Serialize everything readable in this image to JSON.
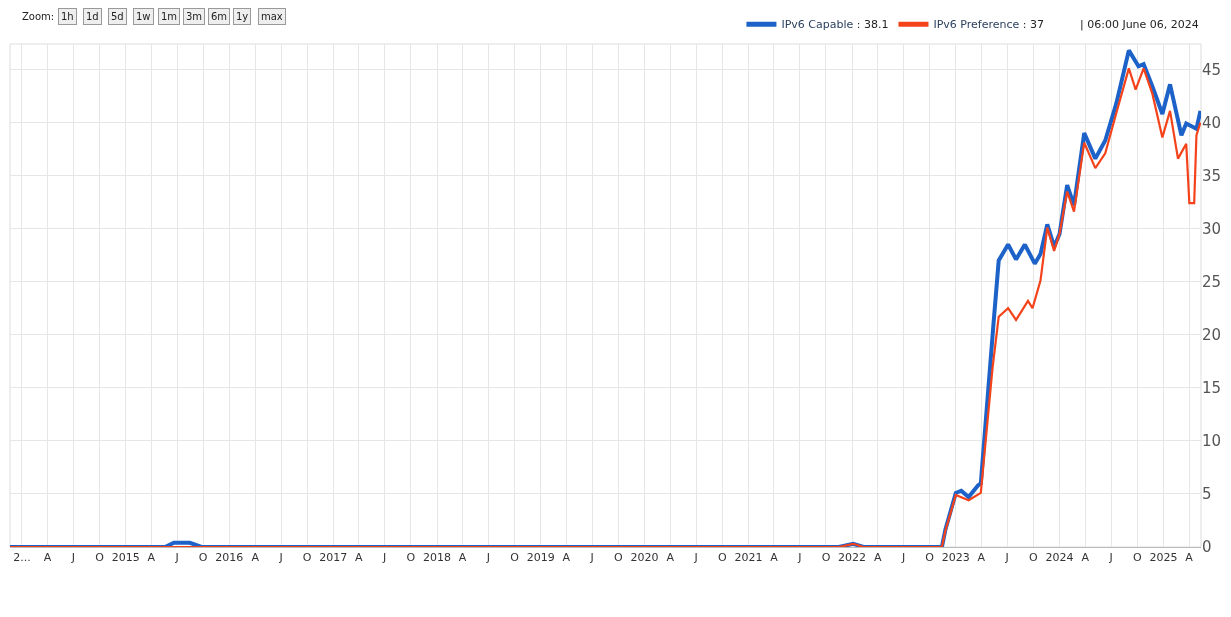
{
  "chart_data": {
    "type": "line",
    "annotations": [
      "Zoom:",
      "1h",
      "1d",
      "5d",
      "1w",
      "1m",
      "3m",
      "6m",
      "1y",
      "max",
      ": 38.1",
      ": 37",
      "| 06:00 June 06, 2024"
    ],
    "xlim": [
      "2013-11-20",
      "2025-05-13"
    ],
    "xticks": [
      {
        "value": "2014-01-01",
        "label": "2..."
      },
      {
        "value": "2014-04-01",
        "label": "A"
      },
      {
        "value": "2014-07-01",
        "label": "J"
      },
      {
        "value": "2014-10-01",
        "label": "O"
      },
      {
        "value": "2015-01-01",
        "label": "2015"
      },
      {
        "value": "2015-04-01",
        "label": "A"
      },
      {
        "value": "2015-07-01",
        "label": "J"
      },
      {
        "value": "2015-10-01",
        "label": "O"
      },
      {
        "value": "2016-01-01",
        "label": "2016"
      },
      {
        "value": "2016-04-01",
        "label": "A"
      },
      {
        "value": "2016-07-01",
        "label": "J"
      },
      {
        "value": "2016-10-01",
        "label": "O"
      },
      {
        "value": "2017-01-01",
        "label": "2017"
      },
      {
        "value": "2017-04-01",
        "label": "A"
      },
      {
        "value": "2017-07-01",
        "label": "J"
      },
      {
        "value": "2017-10-01",
        "label": "O"
      },
      {
        "value": "2018-01-01",
        "label": "2018"
      },
      {
        "value": "2018-04-01",
        "label": "A"
      },
      {
        "value": "2018-07-01",
        "label": "J"
      },
      {
        "value": "2018-10-01",
        "label": "O"
      },
      {
        "value": "2019-01-01",
        "label": "2019"
      },
      {
        "value": "2019-04-01",
        "label": "A"
      },
      {
        "value": "2019-07-01",
        "label": "J"
      },
      {
        "value": "2019-10-01",
        "label": "O"
      },
      {
        "value": "2020-01-01",
        "label": "2020"
      },
      {
        "value": "2020-04-01",
        "label": "A"
      },
      {
        "value": "2020-07-01",
        "label": "J"
      },
      {
        "value": "2020-10-01",
        "label": "O"
      },
      {
        "value": "2021-01-01",
        "label": "2021"
      },
      {
        "value": "2021-04-01",
        "label": "A"
      },
      {
        "value": "2021-07-01",
        "label": "J"
      },
      {
        "value": "2021-10-01",
        "label": "O"
      },
      {
        "value": "2022-01-01",
        "label": "2022"
      },
      {
        "value": "2022-04-01",
        "label": "A"
      },
      {
        "value": "2022-07-01",
        "label": "J"
      },
      {
        "value": "2022-10-01",
        "label": "O"
      },
      {
        "value": "2023-01-01",
        "label": "2023"
      },
      {
        "value": "2023-04-01",
        "label": "A"
      },
      {
        "value": "2023-07-01",
        "label": "J"
      },
      {
        "value": "2023-10-01",
        "label": "O"
      },
      {
        "value": "2024-01-01",
        "label": "2024"
      },
      {
        "value": "2024-04-01",
        "label": "A"
      },
      {
        "value": "2024-07-01",
        "label": "J"
      },
      {
        "value": "2024-10-01",
        "label": "O"
      },
      {
        "value": "2025-01-01",
        "label": "2025"
      },
      {
        "value": "2025-04-01",
        "label": "A"
      }
    ],
    "ylim": [
      0,
      47.4
    ],
    "yticks": [
      0,
      5,
      10,
      15,
      20,
      25,
      30,
      35,
      40,
      45
    ],
    "grid": true,
    "legend": "top right",
    "marker": "none",
    "line_style": "solid",
    "series": [
      {
        "name": "IPv6 Capable",
        "color": "#1d62c8",
        "x": [
          "2013-11-20",
          "2015-05-20",
          "2015-06-20",
          "2015-08-15",
          "2015-09-25",
          "2015-10-10",
          "2021-11-15",
          "2022-01-05",
          "2022-02-10",
          "2022-11-13",
          "2022-11-25",
          "2023-01-01",
          "2023-01-20",
          "2023-02-15",
          "2023-03-20",
          "2023-03-30",
          "2023-05-13",
          "2023-06-01",
          "2023-07-04",
          "2023-08-01",
          "2023-09-01",
          "2023-10-06",
          "2023-10-26",
          "2023-11-19",
          "2023-12-13",
          "2024-01-01",
          "2024-01-28",
          "2024-02-21",
          "2024-03-28",
          "2024-05-06",
          "2024-06-10",
          "2024-07-19",
          "2024-09-01",
          "2024-10-05",
          "2024-10-23",
          "2024-11-23",
          "2024-12-28",
          "2025-01-24",
          "2025-03-05",
          "2025-03-22",
          "2025-04-27",
          "2025-05-11"
        ],
        "values": [
          0,
          0,
          0.4,
          0.4,
          0,
          0,
          0,
          0.3,
          0,
          0,
          1.6,
          5.1,
          5.3,
          4.7,
          5.8,
          6.0,
          20.8,
          27.0,
          28.5,
          27.1,
          28.5,
          26.7,
          27.6,
          30.4,
          28.3,
          29.5,
          34.1,
          32.2,
          39.0,
          36.6,
          38.3,
          41.8,
          46.8,
          45.3,
          45.5,
          43.4,
          40.8,
          43.6,
          38.8,
          39.9,
          39.4,
          41.1
        ]
      },
      {
        "name": "IPv6 Preference",
        "color": "#f4431b",
        "x": [
          "2013-11-20",
          "2021-11-15",
          "2022-01-05",
          "2022-02-10",
          "2022-11-13",
          "2022-11-25",
          "2023-01-01",
          "2023-02-15",
          "2023-03-30",
          "2023-05-10",
          "2023-06-01",
          "2023-07-04",
          "2023-08-01",
          "2023-09-12",
          "2023-09-28",
          "2023-10-26",
          "2023-11-19",
          "2023-12-13",
          "2024-01-01",
          "2024-01-28",
          "2024-02-21",
          "2024-03-28",
          "2024-05-06",
          "2024-06-10",
          "2024-07-19",
          "2024-09-01",
          "2024-09-25",
          "2024-10-23",
          "2024-11-23",
          "2024-12-28",
          "2025-01-24",
          "2025-02-21",
          "2025-03-22",
          "2025-04-02",
          "2025-04-19",
          "2025-04-27",
          "2025-05-11"
        ],
        "values": [
          0,
          0,
          0.3,
          0,
          0,
          1.5,
          4.9,
          4.4,
          5.1,
          16.8,
          21.7,
          22.5,
          21.4,
          23.2,
          22.5,
          25.1,
          30.1,
          27.9,
          29.5,
          33.5,
          31.6,
          38.1,
          35.7,
          37.1,
          40.9,
          45.1,
          43.1,
          45.1,
          42.7,
          38.6,
          41.1,
          36.6,
          38.0,
          32.4,
          32.4,
          38.8,
          40.0
        ]
      }
    ]
  }
}
